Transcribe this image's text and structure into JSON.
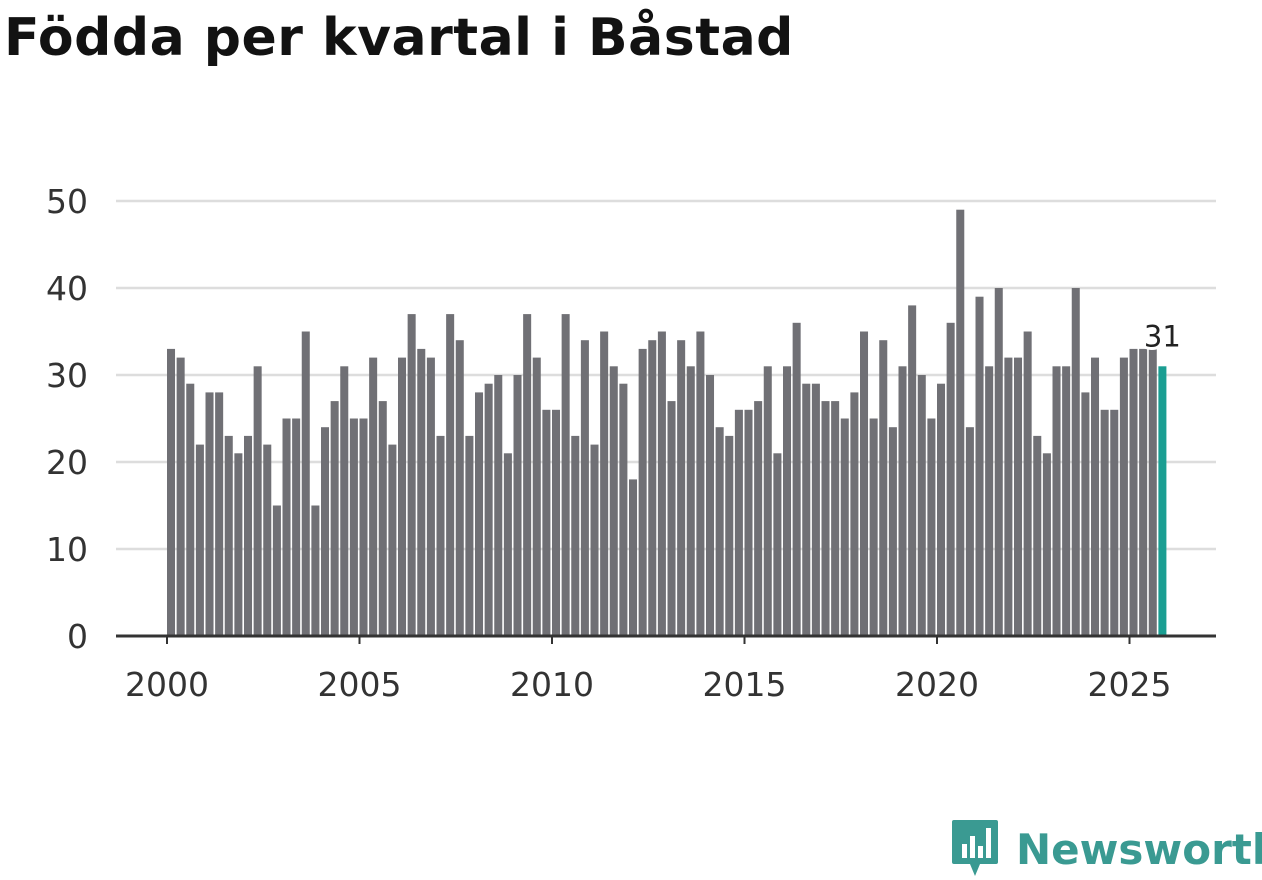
{
  "title": "Födda per kvartal i Båstad",
  "brand": {
    "name": "Newsworthy",
    "color": "#3a9a92"
  },
  "colors": {
    "bar": "#707075",
    "highlight": "#1a9e92",
    "grid": "#dddddd",
    "axis": "#333333"
  },
  "chart_data": {
    "type": "bar",
    "title": "Födda per kvartal i Båstad",
    "xlabel": "",
    "ylabel": "",
    "ylim": [
      0,
      50
    ],
    "yticks": [
      "0",
      "10",
      "20",
      "30",
      "40",
      "50"
    ],
    "xticks": [
      "2000",
      "2005",
      "2010",
      "2015",
      "2020",
      "2025"
    ],
    "start_year": 2000,
    "periods_per_year": 4,
    "grid": true,
    "last_value_label": "31",
    "values": [
      33,
      32,
      29,
      22,
      28,
      28,
      23,
      21,
      23,
      31,
      22,
      15,
      25,
      25,
      35,
      15,
      24,
      27,
      31,
      25,
      25,
      32,
      27,
      22,
      32,
      37,
      33,
      32,
      23,
      37,
      34,
      23,
      28,
      29,
      30,
      21,
      30,
      37,
      32,
      26,
      26,
      37,
      23,
      34,
      22,
      35,
      31,
      29,
      18,
      33,
      34,
      35,
      27,
      34,
      31,
      35,
      30,
      24,
      23,
      26,
      26,
      27,
      31,
      21,
      31,
      36,
      29,
      29,
      27,
      27,
      25,
      28,
      35,
      25,
      34,
      24,
      31,
      38,
      30,
      25,
      29,
      36,
      49,
      24,
      39,
      31,
      40,
      32,
      32,
      35,
      23,
      21,
      31,
      31,
      40,
      28,
      32,
      26,
      26,
      32,
      33,
      33,
      33,
      31
    ]
  }
}
